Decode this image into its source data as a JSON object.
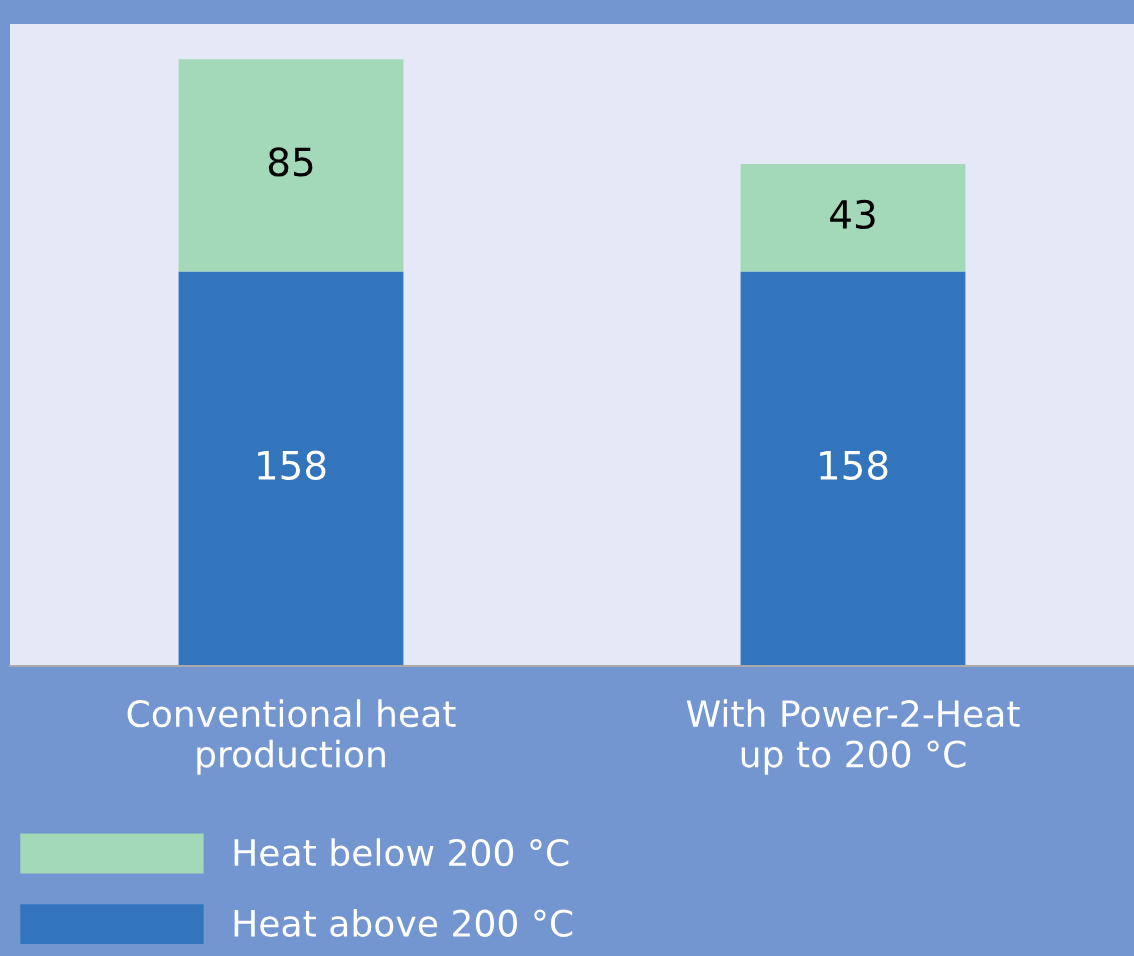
{
  "chart_data": {
    "type": "bar",
    "stacked": true,
    "data_labels": true,
    "legend": "bottom left",
    "grid": false,
    "categories": [
      "Conventional heat\nproduction",
      "With Power-2-Heat\nup to 200 °C"
    ],
    "series": [
      {
        "name": "Heat above 200 °C",
        "color": "#3275bd",
        "values": [
          158,
          158
        ]
      },
      {
        "name": "Heat below 200 °C",
        "color": "#a3d8b8",
        "values": [
          85,
          43
        ]
      }
    ]
  }
}
